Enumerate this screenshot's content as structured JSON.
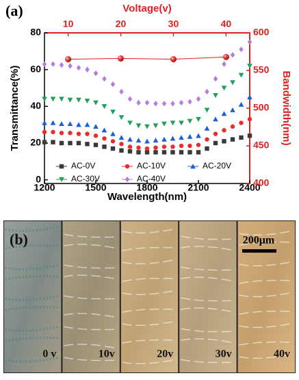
{
  "chart_data": {
    "type": "scatter",
    "panel_label": "(a)",
    "x_label": "Wavelength(nm)",
    "y_label": "Transmittance(%)",
    "x2_label": "Voltage(v)",
    "y2_label": "Bandwidth(nm)",
    "xlim": [
      1200,
      2400
    ],
    "xticks": [
      1200,
      1500,
      1800,
      2100,
      2400
    ],
    "ylim": [
      -2,
      80
    ],
    "yticks": [
      0,
      20,
      40,
      60,
      80
    ],
    "x2lim": [
      5.5,
      44.5
    ],
    "x2ticks": [
      10,
      20,
      30,
      40
    ],
    "y2lim": [
      400,
      600
    ],
    "y2ticks": [
      400,
      450,
      500,
      550,
      600
    ],
    "axis2_color": "#e02020",
    "x": [
      1200,
      1250,
      1300,
      1350,
      1400,
      1450,
      1500,
      1550,
      1600,
      1650,
      1700,
      1750,
      1800,
      1850,
      1900,
      1950,
      2000,
      2050,
      2100,
      2150,
      2200,
      2250,
      2300,
      2350,
      2400
    ],
    "series": [
      {
        "name": "AC-0V",
        "color": "#3a3a3a",
        "marker": "square",
        "values": [
          20.5,
          20.5,
          20,
          20,
          20,
          19.5,
          19,
          18,
          17,
          16,
          15.5,
          15,
          15,
          15,
          15,
          15,
          15,
          15,
          15,
          17,
          20,
          21,
          22,
          23,
          24
        ]
      },
      {
        "name": "AC-10V",
        "color": "#ee2a2a",
        "marker": "circle",
        "values": [
          26,
          26,
          25.5,
          25.5,
          25,
          25,
          24,
          22.5,
          21,
          19.5,
          18,
          17.5,
          17,
          17.5,
          18,
          18,
          18.5,
          18.5,
          19,
          22,
          25,
          27,
          29,
          31,
          33
        ]
      },
      {
        "name": "AC-20V",
        "color": "#1f5fd6",
        "marker": "triangle-up",
        "values": [
          31,
          31,
          30.5,
          30.5,
          30,
          30,
          29,
          27,
          25,
          23,
          22,
          21.5,
          21,
          21.5,
          22,
          22.5,
          23,
          23.5,
          24,
          28,
          33,
          36,
          38,
          41,
          45
        ]
      },
      {
        "name": "AC-30V",
        "color": "#1fa05a",
        "marker": "triangle-down",
        "values": [
          44,
          44,
          44,
          43.5,
          43.5,
          43,
          42,
          40,
          37,
          34,
          31,
          29.5,
          29,
          29.5,
          30.5,
          31,
          31,
          32,
          33,
          38,
          46,
          50,
          53,
          57,
          62
        ]
      },
      {
        "name": "AC-40V",
        "color": "#b77ae0",
        "marker": "diamond",
        "values": [
          63,
          63,
          62.5,
          62,
          61,
          60,
          58,
          55,
          52,
          48,
          44,
          42,
          42,
          41.5,
          41.5,
          41.5,
          42,
          42.5,
          44,
          48,
          55,
          63,
          68,
          71,
          75
        ]
      },
      {
        "color": "#e02020",
        "marker": "ball",
        "axis": "y2",
        "x": [
          10,
          20,
          30,
          40
        ],
        "values": [
          565,
          566,
          565,
          568
        ]
      }
    ]
  },
  "panel_b": {
    "label": "(b)",
    "scale_bar": "200μm",
    "images": [
      "0 v",
      "10v",
      "20v",
      "30v",
      "40v"
    ]
  }
}
